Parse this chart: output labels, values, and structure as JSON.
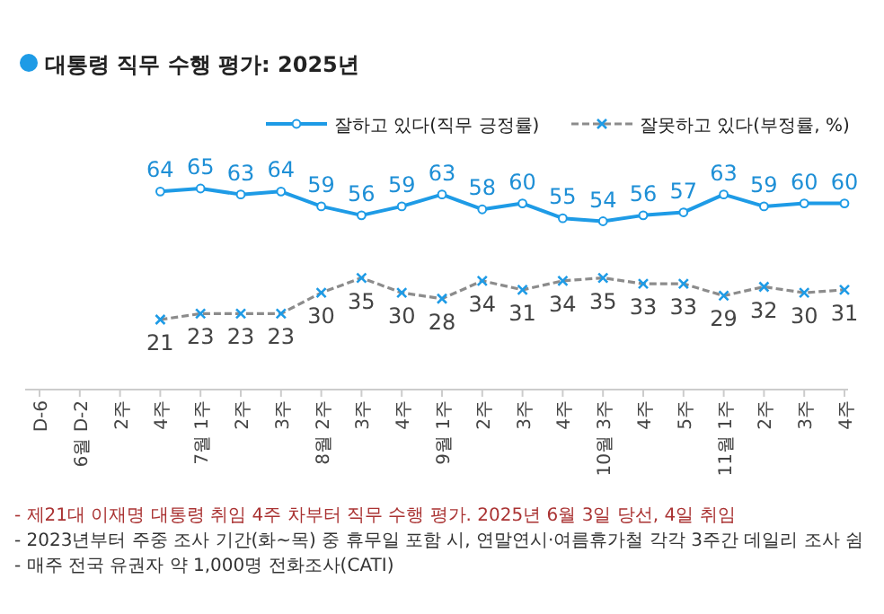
{
  "chart_data": {
    "type": "line",
    "title": "대통령 직무 수행 평가: 2025년",
    "categories": [
      "D-6",
      "6월 D-2",
      "2주",
      "4주",
      "7월 1주",
      "2주",
      "3주",
      "8월 2주",
      "3주",
      "4주",
      "9월 1주",
      "2주",
      "3주",
      "4주",
      "10월 3주",
      "4주",
      "5주",
      "11월 1주",
      "2주",
      "3주",
      "4주"
    ],
    "series": [
      {
        "name": "잘하고 있다(직무 긍정률)",
        "color": "#1e9be6",
        "marker": "circle",
        "line_style": "solid",
        "values": [
          null,
          null,
          null,
          64,
          65,
          63,
          64,
          59,
          56,
          59,
          63,
          58,
          60,
          55,
          54,
          56,
          57,
          63,
          59,
          60,
          60
        ]
      },
      {
        "name": "잘못하고 있다(부정률, %)",
        "color": "#8c8c8c",
        "marker": "cross",
        "line_style": "dashed",
        "values": [
          null,
          null,
          null,
          21,
          23,
          23,
          23,
          30,
          35,
          30,
          28,
          34,
          31,
          34,
          35,
          33,
          33,
          29,
          32,
          30,
          31
        ]
      }
    ],
    "data_labels": true,
    "legend": "top right",
    "grid": false,
    "annotations": [
      "- 제21대 이재명 대통령 취임 4주 차부터 직무 수행 평가. 2025년 6월 3일 당선, 4일 취임",
      "- 2023년부터 주중 조사 기간(화~목) 중 휴무일 포함 시, 연말연시·여름휴가철 각각 3주간 데일리 조사 쉼",
      "- 매주 전국 유권자 약 1,000명 전화조사(CATI)"
    ]
  }
}
